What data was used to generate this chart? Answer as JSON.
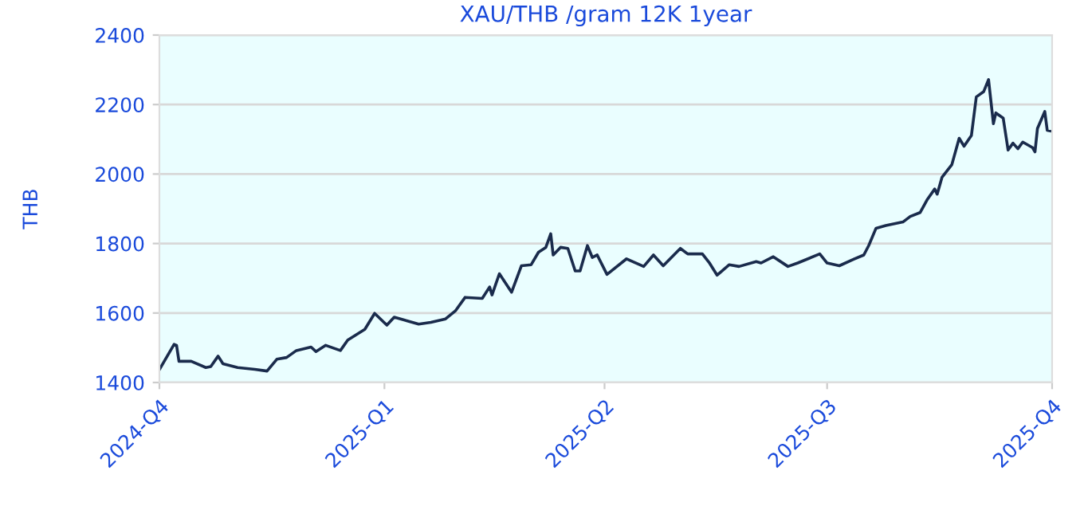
{
  "chart_data": {
    "type": "line",
    "title": "XAU/THB /gram 12K 1year",
    "ylabel": "THB",
    "x": [
      "2024-10-01",
      "2024-10-07",
      "2024-10-08",
      "2024-10-09",
      "2024-10-14",
      "2024-10-20",
      "2024-10-22",
      "2024-10-25",
      "2024-10-27",
      "2024-11-02",
      "2024-11-09",
      "2024-11-14",
      "2024-11-18",
      "2024-11-22",
      "2024-11-26",
      "2024-12-02",
      "2024-12-04",
      "2024-12-08",
      "2024-12-14",
      "2024-12-17",
      "2024-12-24",
      "2024-12-28",
      "2025-01-02",
      "2025-01-05",
      "2025-01-15",
      "2025-01-20",
      "2025-01-26",
      "2025-01-30",
      "2025-02-03",
      "2025-02-10",
      "2025-02-13",
      "2025-02-14",
      "2025-02-17",
      "2025-02-22",
      "2025-02-26",
      "2025-03-02",
      "2025-03-05",
      "2025-03-08",
      "2025-03-10",
      "2025-03-11",
      "2025-03-14",
      "2025-03-17",
      "2025-03-20",
      "2025-03-22",
      "2025-03-25",
      "2025-03-27",
      "2025-03-29",
      "2025-04-02",
      "2025-04-10",
      "2025-04-17",
      "2025-04-21",
      "2025-04-25",
      "2025-05-02",
      "2025-05-05",
      "2025-05-11",
      "2025-05-14",
      "2025-05-17",
      "2025-05-22",
      "2025-05-26",
      "2025-06-02",
      "2025-06-04",
      "2025-06-09",
      "2025-06-15",
      "2025-06-19",
      "2025-06-28",
      "2025-07-01",
      "2025-07-06",
      "2025-07-12",
      "2025-07-16",
      "2025-07-18",
      "2025-07-21",
      "2025-07-25",
      "2025-08-01",
      "2025-08-04",
      "2025-08-08",
      "2025-08-11",
      "2025-08-14",
      "2025-08-15",
      "2025-08-17",
      "2025-08-21",
      "2025-08-24",
      "2025-08-26",
      "2025-08-29",
      "2025-08-31",
      "2025-09-03",
      "2025-09-05",
      "2025-09-07",
      "2025-09-08",
      "2025-09-11",
      "2025-09-13",
      "2025-09-15",
      "2025-09-17",
      "2025-09-19",
      "2025-09-23",
      "2025-09-24",
      "2025-09-25",
      "2025-09-28",
      "2025-09-29",
      "2025-10-01"
    ],
    "series": [
      {
        "color": "#1a2b4c",
        "values": [
          1437,
          1510,
          1507,
          1461,
          1461,
          1443,
          1446,
          1476,
          1454,
          1443,
          1438,
          1433,
          1467,
          1472,
          1492,
          1502,
          1489,
          1507,
          1492,
          1522,
          1553,
          1599,
          1565,
          1588,
          1568,
          1573,
          1583,
          1606,
          1645,
          1642,
          1675,
          1652,
          1713,
          1660,
          1736,
          1739,
          1775,
          1789,
          1828,
          1767,
          1789,
          1786,
          1721,
          1721,
          1794,
          1760,
          1767,
          1711,
          1756,
          1734,
          1767,
          1736,
          1786,
          1770,
          1770,
          1743,
          1709,
          1739,
          1734,
          1748,
          1744,
          1762,
          1734,
          1744,
          1770,
          1744,
          1736,
          1755,
          1767,
          1794,
          1844,
          1852,
          1862,
          1878,
          1889,
          1927,
          1957,
          1942,
          1991,
          2027,
          2103,
          2080,
          2111,
          2222,
          2237,
          2272,
          2145,
          2176,
          2161,
          2069,
          2089,
          2073,
          2092,
          2076,
          2064,
          2131,
          2180,
          2126,
          2123
        ]
      }
    ],
    "xlim": [
      "2024-10-01",
      "2025-10-01"
    ],
    "xticks": [
      {
        "value": "2024-10-01",
        "label": "2024-Q4"
      },
      {
        "value": "2025-01-01",
        "label": "2025-Q1"
      },
      {
        "value": "2025-04-01",
        "label": "2025-Q2"
      },
      {
        "value": "2025-07-01",
        "label": "2025-Q3"
      },
      {
        "value": "2025-10-01",
        "label": "2025-Q4"
      }
    ],
    "ylim": [
      1400,
      2400
    ],
    "yticks": [
      1400,
      1600,
      1800,
      2000,
      2200,
      2400
    ],
    "grid": "y",
    "legend": false,
    "marker": "none",
    "line_style": "solid"
  }
}
